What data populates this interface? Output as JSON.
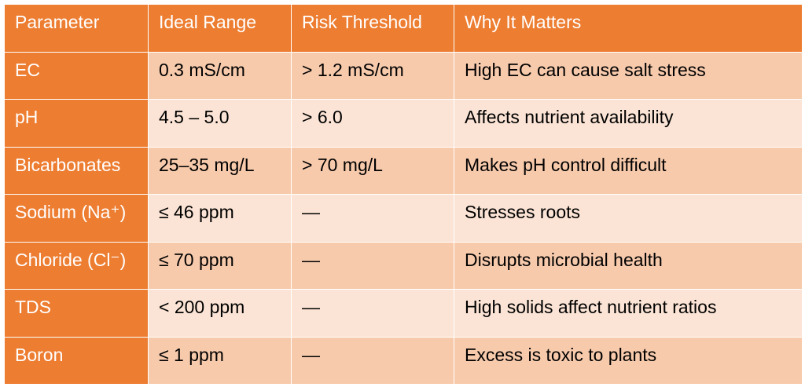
{
  "headers": [
    "Parameter",
    "Ideal Range",
    "Risk Threshold",
    "Why It Matters"
  ],
  "rows": [
    [
      "EC",
      "0.3 mS/cm",
      "> 1.2 mS/cm",
      "High EC can cause salt stress"
    ],
    [
      "pH",
      "4.5 – 5.0",
      "> 6.0",
      "Affects nutrient availability"
    ],
    [
      "Bicarbonates",
      "25–35 mg/L",
      "> 70 mg/L",
      "Makes pH control difficult"
    ],
    [
      "Sodium (Na⁺)",
      "≤ 46 ppm",
      "—",
      "Stresses roots"
    ],
    [
      "Chloride (Cl⁻)",
      "≤ 70 ppm",
      "—",
      "Disrupts microbial health"
    ],
    [
      "TDS",
      "< 200 ppm",
      "—",
      "High solids affect nutrient ratios"
    ],
    [
      "Boron",
      "≤ 1 ppm",
      "—",
      "Excess is toxic to plants"
    ]
  ],
  "colors": {
    "header": "#ED7D31",
    "row_dark": "#F7CAAC",
    "row_light": "#FBE4D5"
  }
}
